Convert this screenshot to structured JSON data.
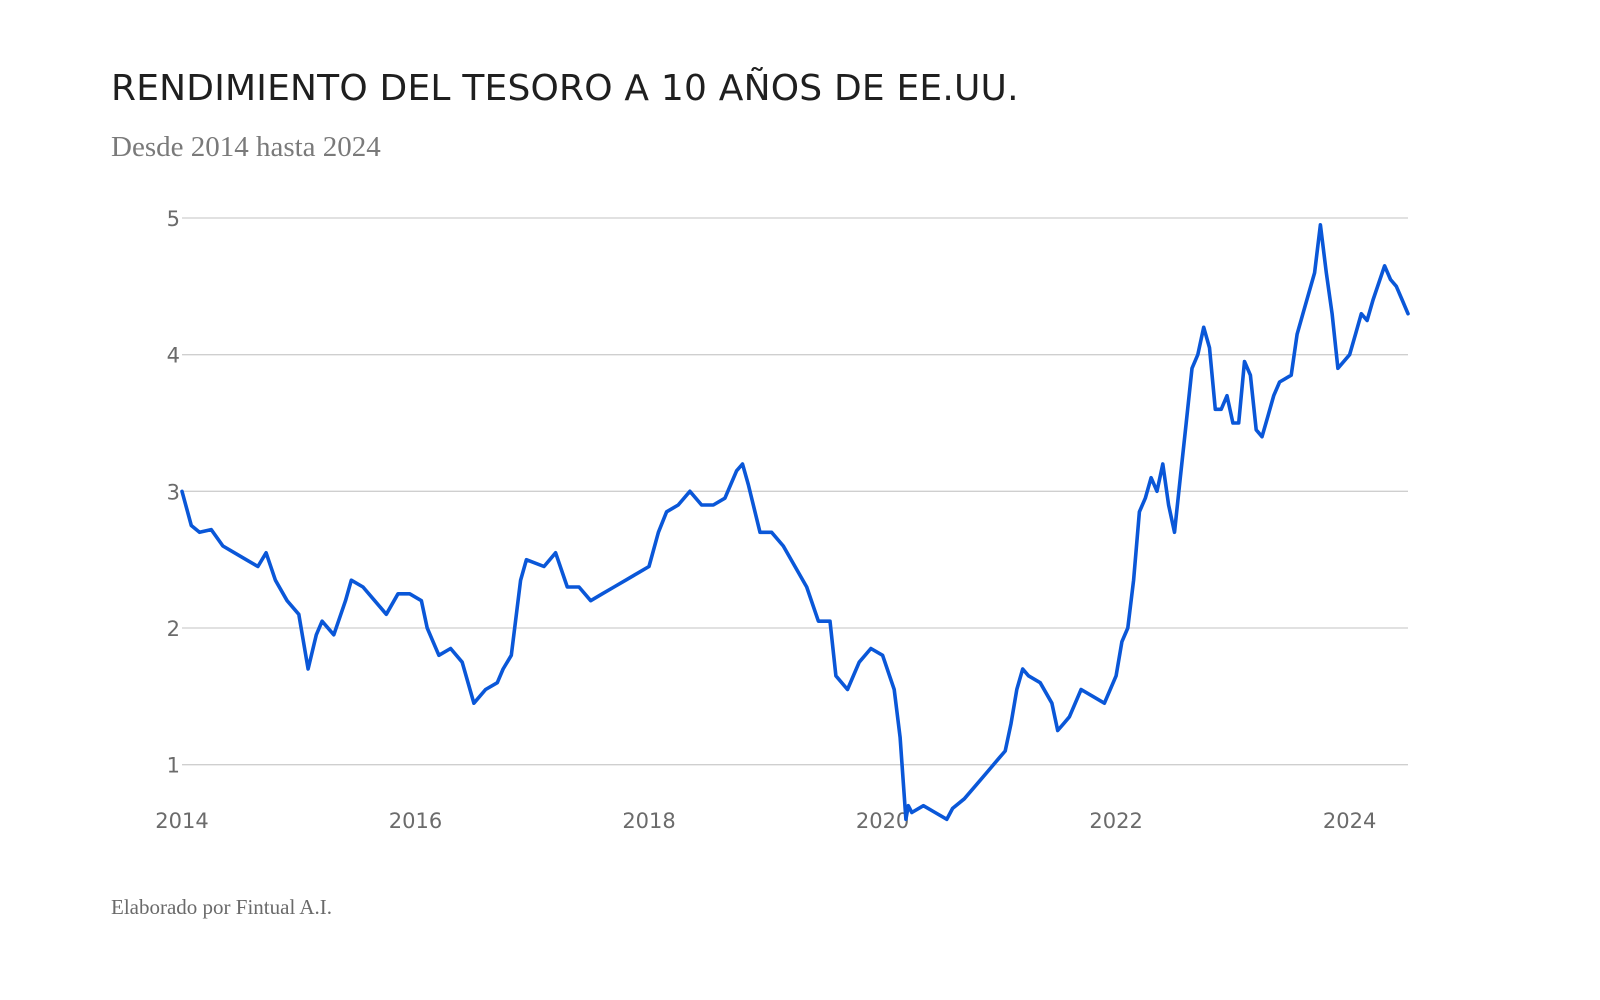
{
  "header": {
    "title": "RENDIMIENTO DEL TESORO A 10 AÑOS DE EE.UU.",
    "subtitle": "Desde 2014 hasta 2024"
  },
  "footer": {
    "credit": "Elaborado por Fintual A.I."
  },
  "colors": {
    "line": "#0a57d8",
    "grid": "#cfcfcf",
    "tick_text": "#6b6b6b",
    "title_text": "#1f1f1f",
    "subtitle_text": "#7a7a7a"
  },
  "chart_data": {
    "type": "line",
    "title": "RENDIMIENTO DEL TESORO A 10 AÑOS DE EE.UU.",
    "subtitle": "Desde 2014 hasta 2024",
    "xlabel": "",
    "ylabel": "",
    "xlim": [
      2014.0,
      2024.5
    ],
    "ylim": [
      0.5,
      5
    ],
    "grid": true,
    "legend": "none",
    "x_ticks": [
      2014,
      2016,
      2018,
      2020,
      2022,
      2024
    ],
    "x_tick_labels": [
      "2014",
      "2016",
      "2018",
      "2020",
      "2022",
      "2024"
    ],
    "y_ticks": [
      1,
      2,
      3,
      4,
      5
    ],
    "y_tick_labels": [
      "1",
      "2",
      "3",
      "4",
      "5"
    ],
    "series": [
      {
        "x": [
          2014.0,
          2014.08,
          2014.15,
          2014.25,
          2014.35,
          2014.45,
          2014.55,
          2014.65,
          2014.72,
          2014.8,
          2014.9,
          2015.0,
          2015.08,
          2015.15,
          2015.2,
          2015.3,
          2015.4,
          2015.45,
          2015.55,
          2015.65,
          2015.75,
          2015.85,
          2015.95,
          2016.05,
          2016.1,
          2016.2,
          2016.3,
          2016.4,
          2016.5,
          2016.6,
          2016.7,
          2016.75,
          2016.82,
          2016.9,
          2016.95,
          2017.1,
          2017.2,
          2017.3,
          2017.4,
          2017.5,
          2017.6,
          2017.7,
          2017.8,
          2017.9,
          2018.0,
          2018.08,
          2018.15,
          2018.25,
          2018.35,
          2018.45,
          2018.55,
          2018.65,
          2018.75,
          2018.8,
          2018.85,
          2018.95,
          2019.05,
          2019.15,
          2019.25,
          2019.35,
          2019.45,
          2019.55,
          2019.6,
          2019.7,
          2019.8,
          2019.9,
          2020.0,
          2020.1,
          2020.15,
          2020.2,
          2020.22,
          2020.25,
          2020.35,
          2020.45,
          2020.55,
          2020.6,
          2020.7,
          2020.8,
          2020.9,
          2021.0,
          2021.05,
          2021.1,
          2021.15,
          2021.2,
          2021.25,
          2021.35,
          2021.45,
          2021.5,
          2021.55,
          2021.6,
          2021.7,
          2021.8,
          2021.9,
          2022.0,
          2022.05,
          2022.1,
          2022.15,
          2022.2,
          2022.25,
          2022.3,
          2022.35,
          2022.4,
          2022.45,
          2022.5,
          2022.55,
          2022.6,
          2022.65,
          2022.7,
          2022.75,
          2022.8,
          2022.85,
          2022.9,
          2022.95,
          2023.0,
          2023.05,
          2023.1,
          2023.15,
          2023.2,
          2023.25,
          2023.3,
          2023.35,
          2023.4,
          2023.5,
          2023.55,
          2023.6,
          2023.7,
          2023.75,
          2023.8,
          2023.85,
          2023.9,
          2024.0,
          2024.05,
          2024.1,
          2024.15,
          2024.2,
          2024.3,
          2024.35,
          2024.4,
          2024.45,
          2024.5
        ],
        "values": [
          3.0,
          2.75,
          2.7,
          2.72,
          2.6,
          2.55,
          2.5,
          2.45,
          2.55,
          2.35,
          2.2,
          2.1,
          1.7,
          1.95,
          2.05,
          1.95,
          2.2,
          2.35,
          2.3,
          2.2,
          2.1,
          2.25,
          2.25,
          2.2,
          2.0,
          1.8,
          1.85,
          1.75,
          1.45,
          1.55,
          1.6,
          1.7,
          1.8,
          2.35,
          2.5,
          2.45,
          2.55,
          2.3,
          2.3,
          2.2,
          2.25,
          2.3,
          2.35,
          2.4,
          2.45,
          2.7,
          2.85,
          2.9,
          3.0,
          2.9,
          2.9,
          2.95,
          3.15,
          3.2,
          3.05,
          2.7,
          2.7,
          2.6,
          2.45,
          2.3,
          2.05,
          2.05,
          1.65,
          1.55,
          1.75,
          1.85,
          1.8,
          1.55,
          1.2,
          0.6,
          0.7,
          0.65,
          0.7,
          0.65,
          0.6,
          0.68,
          0.75,
          0.85,
          0.95,
          1.05,
          1.1,
          1.3,
          1.55,
          1.7,
          1.65,
          1.6,
          1.45,
          1.25,
          1.3,
          1.35,
          1.55,
          1.5,
          1.45,
          1.65,
          1.9,
          2.0,
          2.35,
          2.85,
          2.95,
          3.1,
          3.0,
          3.2,
          2.9,
          2.7,
          3.1,
          3.5,
          3.9,
          4.0,
          4.2,
          4.05,
          3.6,
          3.6,
          3.7,
          3.5,
          3.5,
          3.95,
          3.85,
          3.45,
          3.4,
          3.55,
          3.7,
          3.8,
          3.85,
          4.15,
          4.3,
          4.6,
          4.95,
          4.6,
          4.3,
          3.9,
          4.0,
          4.15,
          4.3,
          4.25,
          4.4,
          4.65,
          4.55,
          4.5,
          4.4,
          4.3
        ]
      }
    ]
  }
}
